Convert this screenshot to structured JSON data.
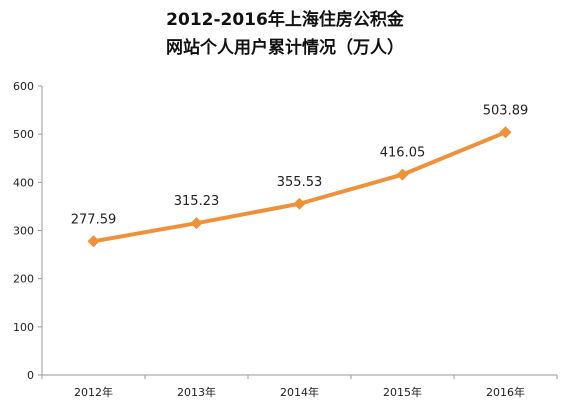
{
  "chart_data": {
    "type": "line",
    "title_line1": "2012-2016年上海住房公积金",
    "title_line2": "网站个人用户累计情况（万人）",
    "xlabel": "",
    "ylabel": "",
    "categories": [
      "2012年",
      "2013年",
      "2014年",
      "2015年",
      "2016年"
    ],
    "series": [
      {
        "values": [
          277.59,
          315.23,
          355.53,
          416.05,
          503.89
        ],
        "data_labels": [
          "277.59",
          "315.23",
          "355.53",
          "416.05",
          "503.89"
        ],
        "color": "#f0913a"
      }
    ],
    "ylim": [
      0,
      600
    ],
    "yticks": [
      0,
      100,
      200,
      300,
      400,
      500,
      600
    ],
    "grid": false,
    "legend": "none",
    "axis_color": "#9a9a9a",
    "marker": "diamond"
  }
}
